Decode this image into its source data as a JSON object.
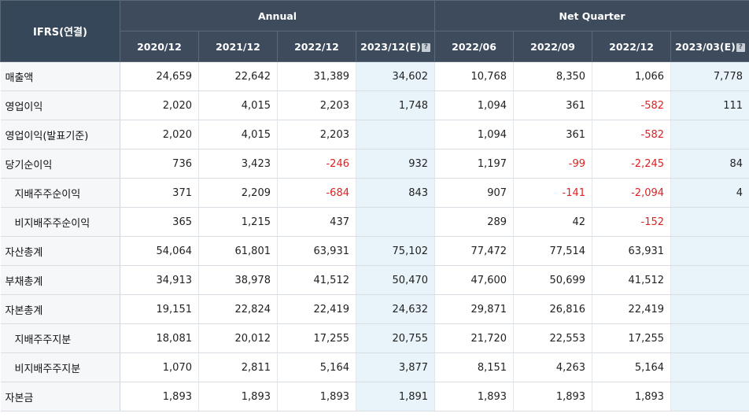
{
  "header": {
    "row_header": "IFRS(연결)",
    "annual_label": "Annual",
    "quarter_label": "Net Quarter",
    "periods": [
      "2020/12",
      "2021/12",
      "2022/12",
      "2023/12(E)",
      "2022/06",
      "2022/09",
      "2022/12",
      "2023/03(E)"
    ],
    "estimate_icon": "?"
  },
  "rows": [
    {
      "label": "매출액",
      "values": [
        "24,659",
        "22,642",
        "31,389",
        "34,602",
        "10,768",
        "8,350",
        "1,066",
        "7,778"
      ]
    },
    {
      "label": "영업이익",
      "values": [
        "2,020",
        "4,015",
        "2,203",
        "1,748",
        "1,094",
        "361",
        "-582",
        "111"
      ]
    },
    {
      "label": "영업이익(발표기준)",
      "values": [
        "2,020",
        "4,015",
        "2,203",
        "",
        "1,094",
        "361",
        "-582",
        ""
      ]
    },
    {
      "label": "당기순이익",
      "values": [
        "736",
        "3,423",
        "-246",
        "932",
        "1,197",
        "-99",
        "-2,245",
        "84"
      ]
    },
    {
      "label": "지배주주순이익",
      "values": [
        "371",
        "2,209",
        "-684",
        "843",
        "907",
        "-141",
        "-2,094",
        "4"
      ]
    },
    {
      "label": "비지배주주순이익",
      "values": [
        "365",
        "1,215",
        "437",
        "",
        "289",
        "42",
        "-152",
        ""
      ]
    },
    {
      "label": "자산총계",
      "values": [
        "54,064",
        "61,801",
        "63,931",
        "75,102",
        "77,472",
        "77,514",
        "63,931",
        ""
      ]
    },
    {
      "label": "부채총계",
      "values": [
        "34,913",
        "38,978",
        "41,512",
        "50,470",
        "47,600",
        "50,699",
        "41,512",
        ""
      ]
    },
    {
      "label": "자본총계",
      "values": [
        "19,151",
        "22,824",
        "22,419",
        "24,632",
        "29,871",
        "26,816",
        "22,419",
        ""
      ]
    },
    {
      "label": "지배주주지분",
      "values": [
        "18,081",
        "20,012",
        "17,255",
        "20,755",
        "21,720",
        "22,553",
        "17,255",
        ""
      ]
    },
    {
      "label": "비지배주주지분",
      "values": [
        "1,070",
        "2,811",
        "5,164",
        "3,877",
        "8,151",
        "4,263",
        "5,164",
        ""
      ]
    },
    {
      "label": "자본금",
      "values": [
        "1,893",
        "1,893",
        "1,893",
        "1,891",
        "1,893",
        "1,893",
        "1,893",
        ""
      ]
    }
  ]
}
